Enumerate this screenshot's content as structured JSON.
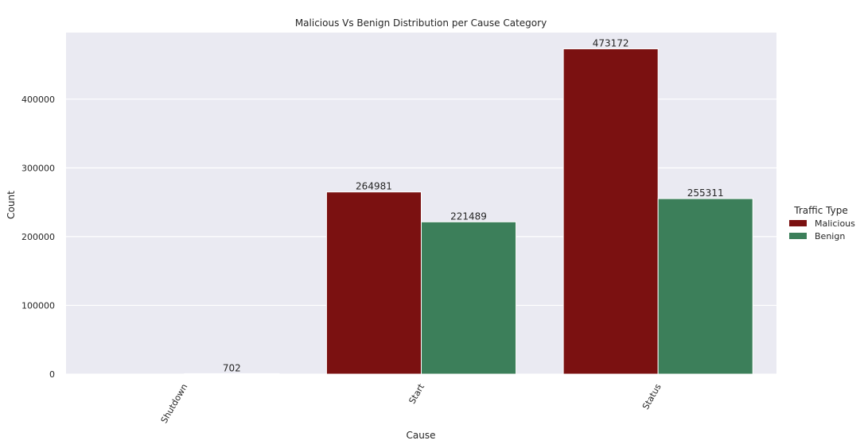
{
  "chart_data": {
    "type": "bar",
    "title": "Malicious Vs Benign Distribution per Cause Category",
    "xlabel": "Cause",
    "ylabel": "Count",
    "categories": [
      "Shutdown",
      "Start",
      "Status"
    ],
    "series": [
      {
        "name": "Malicious",
        "color": "#7b1111",
        "values": [
          0,
          264981,
          473172
        ]
      },
      {
        "name": "Benign",
        "color": "#3c7f5a",
        "values": [
          702,
          221489,
          255311
        ]
      }
    ],
    "value_labels": [
      [
        "",
        "264981",
        "473172"
      ],
      [
        "702",
        "221489",
        "255311"
      ]
    ],
    "ylim": [
      0,
      496830
    ],
    "yticks": [
      0,
      100000,
      200000,
      300000,
      400000
    ],
    "ytick_labels": [
      "0",
      "100000",
      "200000",
      "300000",
      "400000"
    ],
    "grid": true,
    "plot_background": "#eaeaf2",
    "legend": {
      "title": "Traffic Type",
      "placement": "right"
    }
  }
}
